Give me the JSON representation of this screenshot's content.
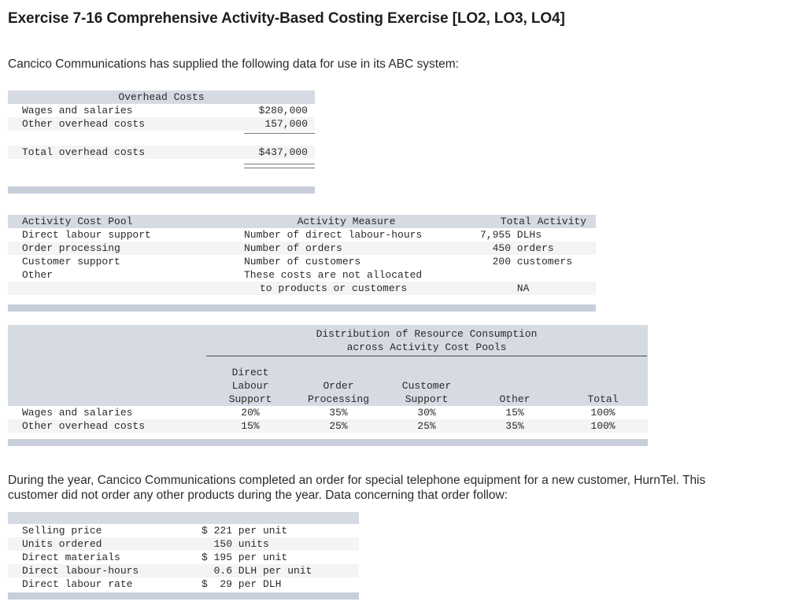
{
  "page": {
    "title": "Exercise 7-16 Comprehensive Activity-Based Costing Exercise [LO2, LO3, LO4]",
    "intro": "Cancico Communications has supplied the following data for use in its ABC system:",
    "order_paragraph": "During the year, Cancico Communications completed an order for special telephone equipment for a new customer, HurnTel. This\ncustomer did not order any other products during the year. Data concerning that order follow:"
  },
  "colors": {
    "table_header_bg": "#d5dae3",
    "table_footer_bar": "#c8cfdb",
    "alt_row_bg": "#f4f4f6"
  },
  "overhead_table": {
    "header": "Overhead Costs",
    "rows": [
      {
        "label": "Wages and salaries",
        "value": "$280,000"
      },
      {
        "label": "Other overhead costs",
        "value": "157,000"
      }
    ],
    "total_row": {
      "label": "Total overhead costs",
      "value": "$437,000"
    }
  },
  "activity_table": {
    "col_pool": "Activity Cost Pool",
    "col_measure": "Activity Measure",
    "col_total": "Total Activity",
    "rows": [
      {
        "pool": "Direct labour support",
        "measure": "Number of direct labour-hours",
        "total_num": "7,955",
        "total_unit": "DLHs"
      },
      {
        "pool": "Order processing",
        "measure": "Number of orders",
        "total_num": "450",
        "total_unit": "orders"
      },
      {
        "pool": "Customer support",
        "measure": "Number of customers",
        "total_num": "200",
        "total_unit": "customers"
      },
      {
        "pool": "Other",
        "measure": "These costs are not allocated",
        "total_num": "",
        "total_unit": ""
      },
      {
        "pool": "",
        "measure": "to products or customers",
        "total_num": "",
        "total_unit": "NA"
      }
    ]
  },
  "distribution_table": {
    "title_line1": "Distribution of Resource Consumption",
    "title_line2": "across Activity Cost Pools",
    "col_headers": [
      "Direct\nLabour\nSupport",
      "Order\nProcessing",
      "Customer\nSupport",
      "Other",
      "Total"
    ],
    "rows": [
      {
        "label": "Wages and salaries",
        "values": [
          "20%",
          "35%",
          "30%",
          "15%",
          "100%"
        ]
      },
      {
        "label": "Other overhead costs",
        "values": [
          "15%",
          "25%",
          "25%",
          "35%",
          "100%"
        ]
      }
    ]
  },
  "order_table": {
    "rows": [
      {
        "label": "Selling price",
        "prefix": "$",
        "num": "221",
        "unit": "per unit"
      },
      {
        "label": "Units ordered",
        "prefix": "",
        "num": "150",
        "unit": "units"
      },
      {
        "label": "Direct materials",
        "prefix": "$",
        "num": "195",
        "unit": "per unit"
      },
      {
        "label": "Direct labour-hours",
        "prefix": "",
        "num": "0.6",
        "unit": "DLH per unit"
      },
      {
        "label": "Direct labour rate",
        "prefix": "$",
        "num": "29",
        "unit": "per DLH"
      }
    ]
  }
}
